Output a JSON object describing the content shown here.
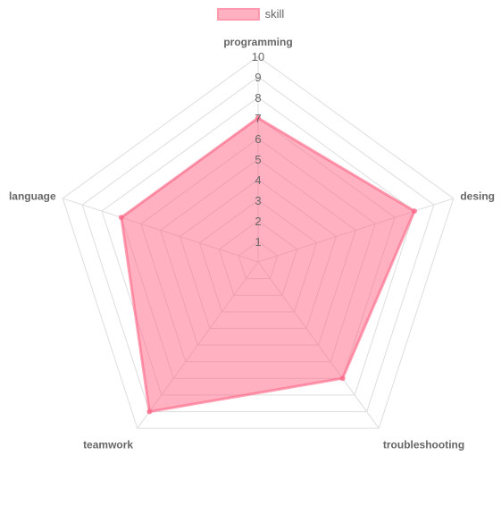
{
  "chart_data": {
    "type": "radar",
    "categories": [
      "programming",
      "desing",
      "troubleshooting",
      "teamwork",
      "language"
    ],
    "series": [
      {
        "name": "skill",
        "values": [
          7,
          8,
          7,
          9,
          7
        ],
        "color": "#ff6384",
        "fill": "#ffb1c1"
      }
    ],
    "scale": {
      "min": 0,
      "max": 10,
      "step": 1
    },
    "tick_labels": [
      "1",
      "2",
      "3",
      "4",
      "5",
      "6",
      "7",
      "8",
      "9",
      "10"
    ],
    "grid": true,
    "legend_position": "top"
  },
  "legend": {
    "label": "skill"
  }
}
